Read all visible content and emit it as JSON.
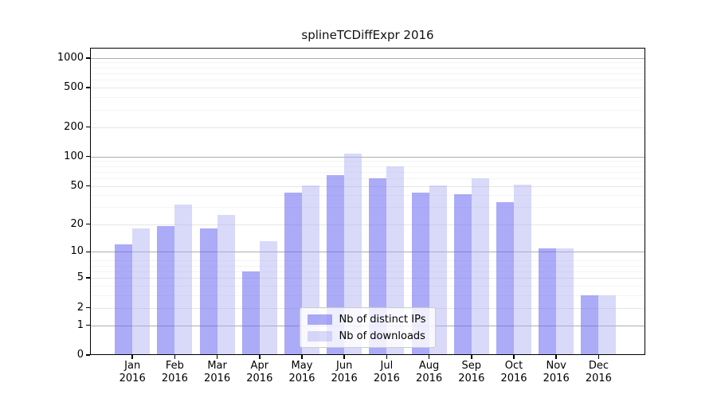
{
  "chart_data": {
    "type": "bar",
    "title": "splineTCDiffExpr 2016",
    "categories": [
      "Jan",
      "Feb",
      "Mar",
      "Apr",
      "May",
      "Jun",
      "Jul",
      "Aug",
      "Sep",
      "Oct",
      "Nov",
      "Dec"
    ],
    "x_tick_year": "2016",
    "series": [
      {
        "name": "Nb of distinct IPs",
        "color": "#6666f0",
        "alpha": 0.55,
        "values": [
          12,
          19,
          18,
          6,
          43,
          64,
          60,
          43,
          41,
          34,
          11,
          3
        ]
      },
      {
        "name": "Nb of downloads",
        "color": "#aaaaf5",
        "alpha": 0.45,
        "values": [
          18,
          32,
          25,
          13,
          51,
          108,
          79,
          51,
          60,
          52,
          11,
          3
        ]
      }
    ],
    "y_scale": "log10(value+1)",
    "y_ticks": [
      0,
      1,
      2,
      5,
      10,
      20,
      50,
      100,
      200,
      500,
      1000
    ],
    "y_major_gridlines": [
      1,
      10,
      100,
      1000
    ],
    "y_minor_gridlines": [
      3,
      4,
      6,
      7,
      8,
      30,
      40,
      60,
      70,
      80,
      90,
      300,
      400,
      600,
      700,
      800,
      900
    ],
    "y_axis_top": 1267,
    "ylim": [
      0,
      1267
    ],
    "grid": true,
    "legend_position": "lower center inside",
    "colors": {
      "grid_major": "#adadad",
      "grid_labeled": "#e6e6e6",
      "grid_minor": "#f4f4f4",
      "axis": "#000000",
      "legend_border": "#cccccc"
    }
  }
}
